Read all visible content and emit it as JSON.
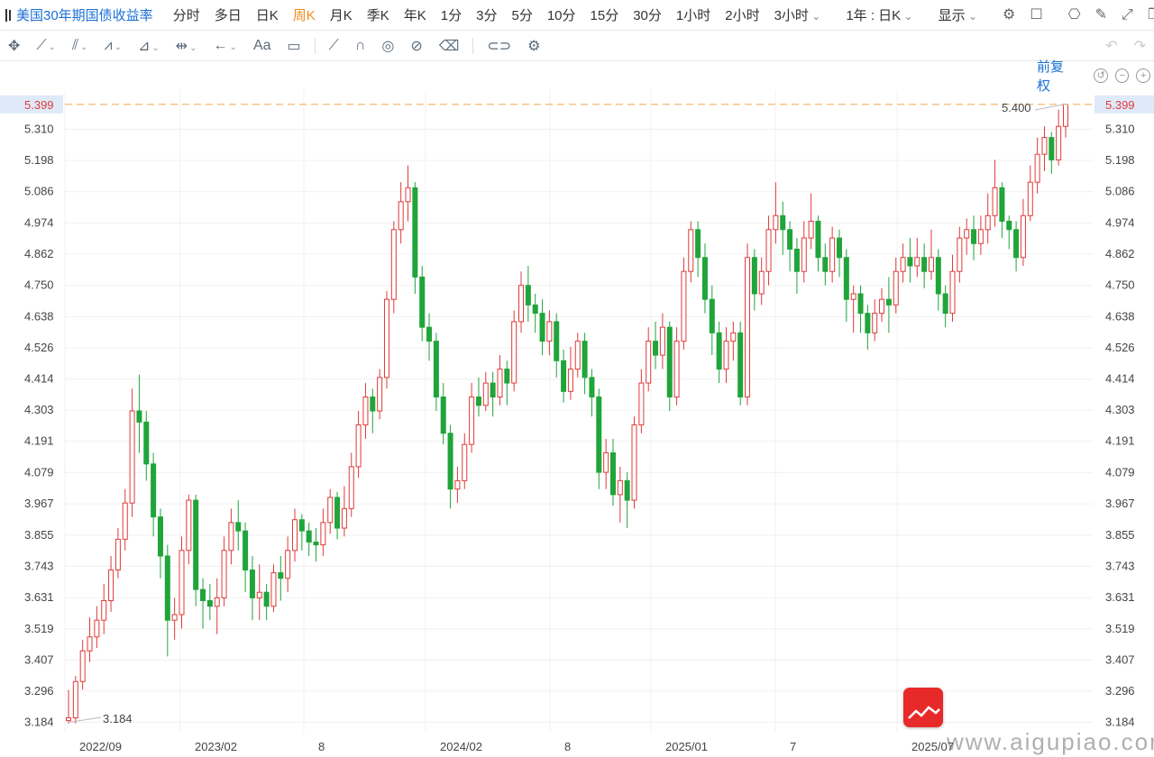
{
  "toolbar": {
    "symbol": "美国30年期国债收益率",
    "periods": [
      "分时",
      "多日",
      "日K",
      "周K",
      "月K",
      "季K",
      "年K",
      "1分",
      "3分",
      "5分",
      "10分",
      "15分",
      "30分",
      "1小时",
      "2小时",
      "3小时"
    ],
    "active_period": "周K",
    "range": "1年 : 日K",
    "display": "显示",
    "adjust": "前复权"
  },
  "chart_data": {
    "type": "candlestick",
    "y_ticks": [
      "5.310",
      "5.198",
      "5.086",
      "4.974",
      "4.862",
      "4.750",
      "4.638",
      "4.526",
      "4.414",
      "4.303",
      "4.191",
      "4.079",
      "3.967",
      "3.855",
      "3.743",
      "3.631",
      "3.519",
      "3.407",
      "3.296",
      "3.184"
    ],
    "ylim": [
      3.15,
      5.45
    ],
    "x_labels": [
      "2022/09",
      "2023/02",
      "8",
      "2024/02",
      "8",
      "2025/01",
      "7",
      "2025/07"
    ],
    "last_price": 5.399,
    "high_label": "5.400",
    "low_label": "3.184",
    "up_color": "#e03a3a",
    "down_color": "#1fa53a",
    "candles": [
      [
        3.19,
        3.2,
        3.18,
        3.3
      ],
      [
        3.2,
        3.33,
        3.18,
        3.35
      ],
      [
        3.33,
        3.44,
        3.3,
        3.48
      ],
      [
        3.44,
        3.49,
        3.4,
        3.56
      ],
      [
        3.49,
        3.55,
        3.45,
        3.6
      ],
      [
        3.55,
        3.62,
        3.5,
        3.68
      ],
      [
        3.62,
        3.73,
        3.58,
        3.78
      ],
      [
        3.73,
        3.84,
        3.7,
        3.88
      ],
      [
        3.84,
        3.97,
        3.8,
        4.02
      ],
      [
        3.97,
        4.3,
        3.92,
        4.38
      ],
      [
        4.3,
        4.26,
        4.15,
        4.43
      ],
      [
        4.26,
        4.11,
        4.05,
        4.3
      ],
      [
        4.11,
        3.92,
        3.85,
        4.15
      ],
      [
        3.92,
        3.78,
        3.7,
        3.95
      ],
      [
        3.78,
        3.55,
        3.42,
        3.82
      ],
      [
        3.55,
        3.57,
        3.48,
        3.63
      ],
      [
        3.57,
        3.8,
        3.52,
        3.85
      ],
      [
        3.8,
        3.98,
        3.75,
        4.0
      ],
      [
        3.98,
        3.66,
        3.6,
        4.0
      ],
      [
        3.66,
        3.62,
        3.52,
        3.7
      ],
      [
        3.62,
        3.6,
        3.55,
        3.68
      ],
      [
        3.6,
        3.63,
        3.5,
        3.7
      ],
      [
        3.63,
        3.8,
        3.6,
        3.85
      ],
      [
        3.8,
        3.9,
        3.75,
        3.95
      ],
      [
        3.9,
        3.87,
        3.8,
        3.98
      ],
      [
        3.87,
        3.73,
        3.65,
        3.9
      ],
      [
        3.73,
        3.63,
        3.55,
        3.78
      ],
      [
        3.63,
        3.65,
        3.55,
        3.75
      ],
      [
        3.65,
        3.6,
        3.55,
        3.68
      ],
      [
        3.6,
        3.72,
        3.58,
        3.75
      ],
      [
        3.72,
        3.7,
        3.62,
        3.78
      ],
      [
        3.7,
        3.8,
        3.65,
        3.85
      ],
      [
        3.8,
        3.91,
        3.76,
        3.95
      ],
      [
        3.91,
        3.87,
        3.8,
        3.93
      ],
      [
        3.87,
        3.83,
        3.78,
        3.9
      ],
      [
        3.83,
        3.82,
        3.76,
        3.88
      ],
      [
        3.82,
        3.9,
        3.78,
        3.95
      ],
      [
        3.9,
        3.99,
        3.86,
        4.02
      ],
      [
        3.99,
        3.88,
        3.84,
        4.01
      ],
      [
        3.88,
        3.95,
        3.85,
        4.03
      ],
      [
        3.95,
        4.1,
        3.92,
        4.15
      ],
      [
        4.1,
        4.25,
        4.06,
        4.3
      ],
      [
        4.25,
        4.35,
        4.2,
        4.4
      ],
      [
        4.35,
        4.3,
        4.22,
        4.38
      ],
      [
        4.3,
        4.42,
        4.27,
        4.45
      ],
      [
        4.42,
        4.7,
        4.38,
        4.73
      ],
      [
        4.7,
        4.95,
        4.65,
        4.98
      ],
      [
        4.95,
        5.05,
        4.9,
        5.12
      ],
      [
        5.05,
        5.1,
        4.98,
        5.18
      ],
      [
        5.1,
        4.78,
        4.72,
        5.12
      ],
      [
        4.78,
        4.6,
        4.55,
        4.82
      ],
      [
        4.6,
        4.55,
        4.48,
        4.65
      ],
      [
        4.55,
        4.35,
        4.3,
        4.58
      ],
      [
        4.35,
        4.22,
        4.18,
        4.4
      ],
      [
        4.22,
        4.02,
        3.95,
        4.25
      ],
      [
        4.02,
        4.05,
        3.97,
        4.1
      ],
      [
        4.05,
        4.18,
        4.02,
        4.22
      ],
      [
        4.18,
        4.35,
        4.15,
        4.4
      ],
      [
        4.35,
        4.32,
        4.28,
        4.42
      ],
      [
        4.32,
        4.4,
        4.3,
        4.44
      ],
      [
        4.4,
        4.35,
        4.28,
        4.44
      ],
      [
        4.35,
        4.45,
        4.32,
        4.5
      ],
      [
        4.45,
        4.4,
        4.32,
        4.48
      ],
      [
        4.4,
        4.62,
        4.37,
        4.66
      ],
      [
        4.62,
        4.75,
        4.58,
        4.8
      ],
      [
        4.75,
        4.68,
        4.62,
        4.82
      ],
      [
        4.68,
        4.65,
        4.58,
        4.72
      ],
      [
        4.65,
        4.55,
        4.5,
        4.7
      ],
      [
        4.55,
        4.62,
        4.5,
        4.66
      ],
      [
        4.62,
        4.48,
        4.42,
        4.65
      ],
      [
        4.48,
        4.37,
        4.33,
        4.52
      ],
      [
        4.37,
        4.45,
        4.34,
        4.53
      ],
      [
        4.45,
        4.55,
        4.42,
        4.58
      ],
      [
        4.55,
        4.42,
        4.36,
        4.58
      ],
      [
        4.42,
        4.35,
        4.28,
        4.45
      ],
      [
        4.35,
        4.08,
        4.02,
        4.38
      ],
      [
        4.08,
        4.15,
        4.02,
        4.2
      ],
      [
        4.15,
        4.0,
        3.96,
        4.2
      ],
      [
        4.0,
        4.05,
        3.9,
        4.1
      ],
      [
        4.05,
        3.98,
        3.88,
        4.08
      ],
      [
        3.98,
        4.25,
        3.95,
        4.28
      ],
      [
        4.25,
        4.4,
        4.22,
        4.45
      ],
      [
        4.4,
        4.55,
        4.37,
        4.6
      ],
      [
        4.55,
        4.5,
        4.45,
        4.62
      ],
      [
        4.5,
        4.6,
        4.45,
        4.65
      ],
      [
        4.6,
        4.35,
        4.3,
        4.62
      ],
      [
        4.35,
        4.55,
        4.32,
        4.6
      ],
      [
        4.55,
        4.8,
        4.52,
        4.85
      ],
      [
        4.8,
        4.95,
        4.76,
        4.98
      ],
      [
        4.95,
        4.85,
        4.78,
        4.98
      ],
      [
        4.85,
        4.7,
        4.65,
        4.9
      ],
      [
        4.7,
        4.58,
        4.5,
        4.75
      ],
      [
        4.58,
        4.45,
        4.4,
        4.62
      ],
      [
        4.45,
        4.55,
        4.4,
        4.6
      ],
      [
        4.55,
        4.58,
        4.48,
        4.62
      ],
      [
        4.58,
        4.35,
        4.32,
        4.62
      ],
      [
        4.35,
        4.85,
        4.32,
        4.9
      ],
      [
        4.85,
        4.72,
        4.66,
        4.88
      ],
      [
        4.72,
        4.8,
        4.68,
        4.85
      ],
      [
        4.8,
        4.95,
        4.75,
        5.0
      ],
      [
        4.95,
        5.0,
        4.9,
        5.12
      ],
      [
        5.0,
        4.95,
        4.86,
        5.05
      ],
      [
        4.95,
        4.88,
        4.8,
        4.98
      ],
      [
        4.88,
        4.8,
        4.72,
        4.92
      ],
      [
        4.8,
        4.92,
        4.76,
        4.98
      ],
      [
        4.92,
        4.98,
        4.88,
        5.08
      ],
      [
        4.98,
        4.85,
        4.8,
        5.0
      ],
      [
        4.85,
        4.8,
        4.75,
        4.9
      ],
      [
        4.8,
        4.92,
        4.76,
        4.96
      ],
      [
        4.92,
        4.85,
        4.78,
        4.95
      ],
      [
        4.85,
        4.7,
        4.62,
        4.88
      ],
      [
        4.7,
        4.72,
        4.58,
        4.75
      ],
      [
        4.72,
        4.65,
        4.58,
        4.75
      ],
      [
        4.65,
        4.58,
        4.52,
        4.68
      ],
      [
        4.58,
        4.65,
        4.55,
        4.7
      ],
      [
        4.65,
        4.7,
        4.62,
        4.74
      ],
      [
        4.7,
        4.68,
        4.58,
        4.78
      ],
      [
        4.68,
        4.8,
        4.65,
        4.85
      ],
      [
        4.8,
        4.85,
        4.76,
        4.9
      ],
      [
        4.85,
        4.82,
        4.76,
        4.92
      ],
      [
        4.82,
        4.85,
        4.78,
        4.92
      ],
      [
        4.85,
        4.8,
        4.74,
        4.9
      ],
      [
        4.8,
        4.85,
        4.77,
        4.95
      ],
      [
        4.85,
        4.72,
        4.66,
        4.88
      ],
      [
        4.72,
        4.65,
        4.6,
        4.75
      ],
      [
        4.65,
        4.8,
        4.62,
        4.86
      ],
      [
        4.8,
        4.92,
        4.76,
        4.96
      ],
      [
        4.92,
        4.95,
        4.86,
        4.99
      ],
      [
        4.95,
        4.9,
        4.84,
        5.0
      ],
      [
        4.9,
        4.95,
        4.86,
        5.0
      ],
      [
        4.95,
        5.0,
        4.9,
        5.08
      ],
      [
        5.0,
        5.1,
        4.96,
        5.2
      ],
      [
        5.1,
        4.98,
        4.92,
        5.12
      ],
      [
        4.98,
        4.95,
        4.88,
        5.0
      ],
      [
        4.95,
        4.85,
        4.8,
        4.98
      ],
      [
        4.85,
        5.0,
        4.82,
        5.06
      ],
      [
        5.0,
        5.12,
        4.98,
        5.18
      ],
      [
        5.12,
        5.22,
        5.08,
        5.28
      ],
      [
        5.22,
        5.28,
        5.16,
        5.32
      ],
      [
        5.28,
        5.2,
        5.15,
        5.3
      ],
      [
        5.2,
        5.32,
        5.18,
        5.38
      ],
      [
        5.32,
        5.399,
        5.28,
        5.4
      ]
    ]
  }
}
